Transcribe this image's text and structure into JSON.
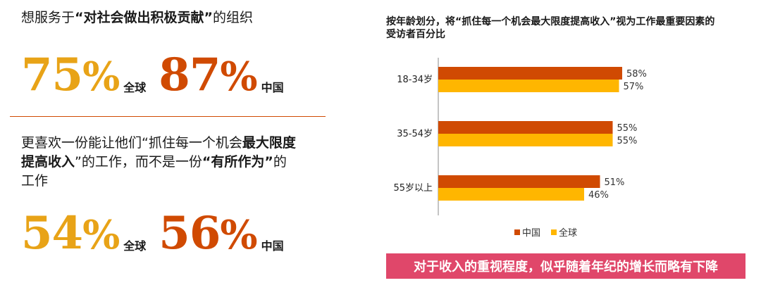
{
  "left": {
    "block1": {
      "heading_prefix": "想服务于",
      "heading_bold": "“对社会做出积极贡献”",
      "heading_suffix": "的组织",
      "global_value": "75",
      "global_label": "全球",
      "china_value": "87",
      "china_label": "中国",
      "percent_sign": "%"
    },
    "block2": {
      "heading_line1_prefix": "更喜欢一份能让他们“抓住每一个机会",
      "heading_line1_bold": "最大限度",
      "heading_line2_bold": "提高收入",
      "heading_line2_mid": "”的工作，而不是一份",
      "heading_line2_bold2": "“有所作为”",
      "heading_line2_suffix": "的",
      "heading_line3": "工作",
      "global_value": "54",
      "global_label": "全球",
      "china_value": "56",
      "china_label": "中国",
      "percent_sign": "%"
    }
  },
  "chart_data": {
    "type": "bar",
    "orientation": "horizontal",
    "title": "按年龄划分，将“抓住每一个机会最大限度提高收入”视为工作最重要因素的受访者百分比",
    "categories": [
      "18-34岁",
      "35-54岁",
      "55岁以上"
    ],
    "series": [
      {
        "name": "中国",
        "color": "#d04a02",
        "values": [
          58,
          55,
          51
        ]
      },
      {
        "name": "全球",
        "color": "#ffb600",
        "values": [
          57,
          55,
          46
        ]
      }
    ],
    "value_suffix": "%",
    "xlim": [
      0,
      100
    ],
    "grid": false,
    "legend": "bottom-center"
  },
  "banner": {
    "text": "对于收入的重视程度，似乎随着年纪的增长而略有下降",
    "color": "#e0476a"
  }
}
